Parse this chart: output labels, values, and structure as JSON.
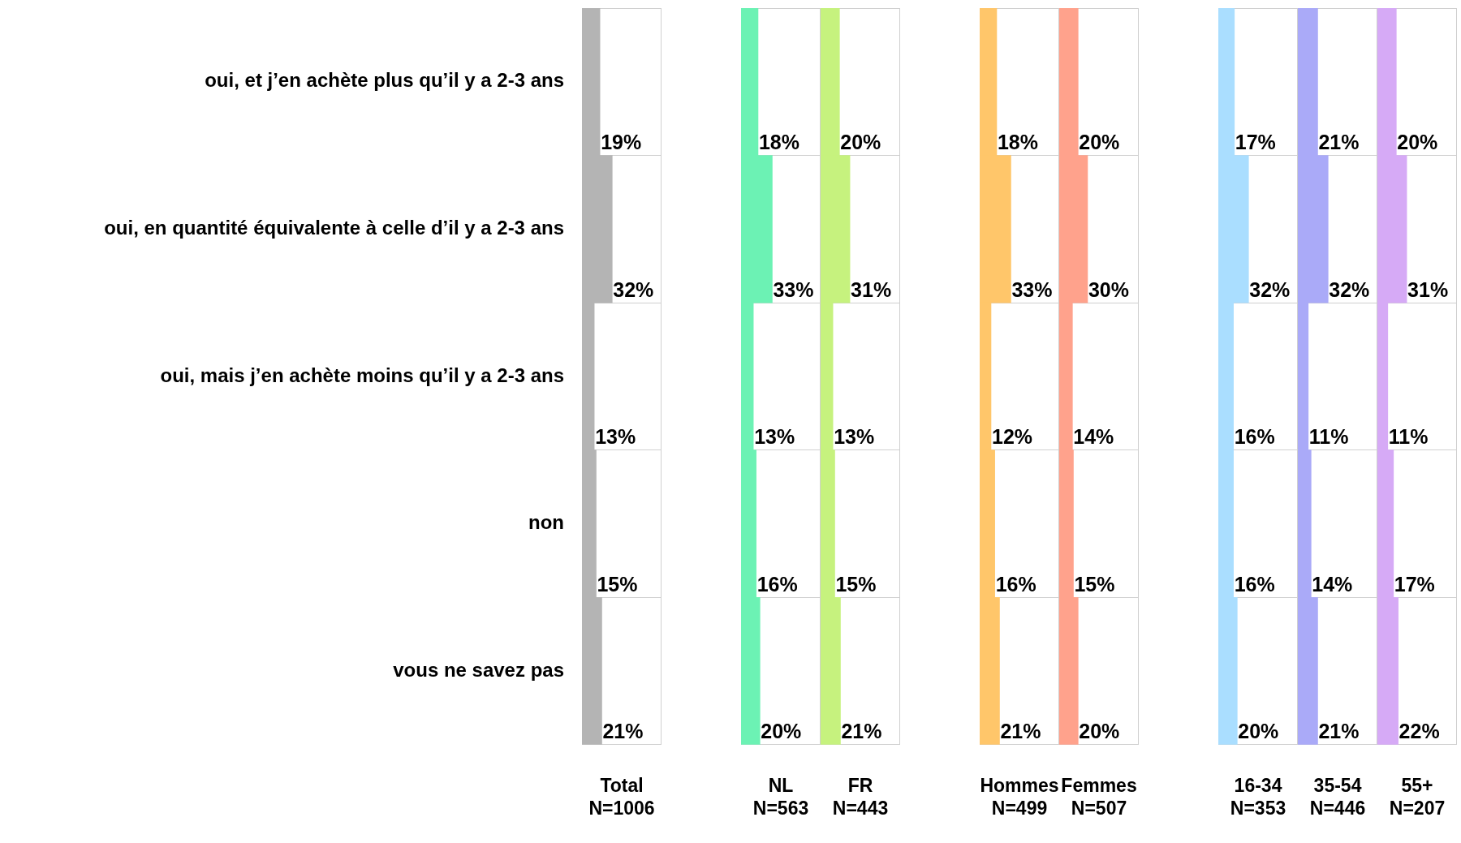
{
  "chart_data": [
    {
      "type": "bar",
      "orientation": "horizontal",
      "categories": [
        "oui, et j’en achète plus qu’il y a 2-3 ans",
        "oui, en quantité équivalente à celle d’il y a 2-3 ans",
        "oui, mais j’en achète moins qu’il y a 2-3 ans",
        "non",
        "vous ne savez pas"
      ],
      "values": [
        19,
        32,
        13,
        15,
        21
      ],
      "value_labels": [
        "19%",
        "32%",
        "13%",
        "15%",
        "21%"
      ],
      "color": "#b4b4b4",
      "xlabel": "Total\nN=1006",
      "tick_labels": "y",
      "grid": true
    },
    {
      "type": "bar",
      "orientation": "horizontal",
      "categories": [
        null,
        null,
        null,
        null,
        null
      ],
      "values": [
        18,
        33,
        13,
        16,
        20
      ],
      "value_labels": [
        "18%",
        "33%",
        "13%",
        "16%",
        "20%"
      ],
      "color": "#6cf2b4",
      "xlabel": "NL\nN=563",
      "tick_labels": false,
      "grid": true
    },
    {
      "type": "bar",
      "orientation": "horizontal",
      "categories": [
        null,
        null,
        null,
        null,
        null
      ],
      "values": [
        20,
        31,
        13,
        15,
        21
      ],
      "value_labels": [
        "20%",
        "31%",
        "13%",
        "15%",
        "21%"
      ],
      "color": "#c6f27e",
      "xlabel": "FR\nN=443",
      "tick_labels": false,
      "grid": true
    },
    {
      "type": "bar",
      "orientation": "horizontal",
      "categories": [
        null,
        null,
        null,
        null,
        null
      ],
      "values": [
        18,
        33,
        12,
        16,
        21
      ],
      "value_labels": [
        "18%",
        "33%",
        "12%",
        "16%",
        "21%"
      ],
      "color": "#ffc66a",
      "xlabel": "Hommes\nN=499",
      "tick_labels": false,
      "grid": true
    },
    {
      "type": "bar",
      "orientation": "horizontal",
      "categories": [
        null,
        null,
        null,
        null,
        null
      ],
      "values": [
        20,
        30,
        14,
        15,
        20
      ],
      "value_labels": [
        "20%",
        "30%",
        "14%",
        "15%",
        "20%"
      ],
      "color": "#ffa28c",
      "xlabel": "Femmes\nN=507",
      "tick_labels": false,
      "grid": true
    },
    {
      "type": "bar",
      "orientation": "horizontal",
      "categories": [
        null,
        null,
        null,
        null,
        null
      ],
      "values": [
        17,
        32,
        16,
        16,
        20
      ],
      "value_labels": [
        "17%",
        "32%",
        "16%",
        "16%",
        "20%"
      ],
      "color": "#aadeff",
      "xlabel": "16-34\nN=353",
      "tick_labels": false,
      "grid": true
    },
    {
      "type": "bar",
      "orientation": "horizontal",
      "categories": [
        null,
        null,
        null,
        null,
        null
      ],
      "values": [
        21,
        32,
        11,
        14,
        21
      ],
      "value_labels": [
        "21%",
        "32%",
        "11%",
        "14%",
        "21%"
      ],
      "color": "#aaaaf8",
      "xlabel": "35-54\nN=446",
      "tick_labels": false,
      "grid": true
    },
    {
      "type": "bar",
      "orientation": "horizontal",
      "categories": [
        null,
        null,
        null,
        null,
        null
      ],
      "values": [
        20,
        31,
        11,
        17,
        22
      ],
      "value_labels": [
        "20%",
        "31%",
        "11%",
        "17%",
        "22%"
      ],
      "color": "#d6aaf6",
      "xlabel": "55+\nN=207",
      "tick_labels": false,
      "grid": true
    }
  ]
}
